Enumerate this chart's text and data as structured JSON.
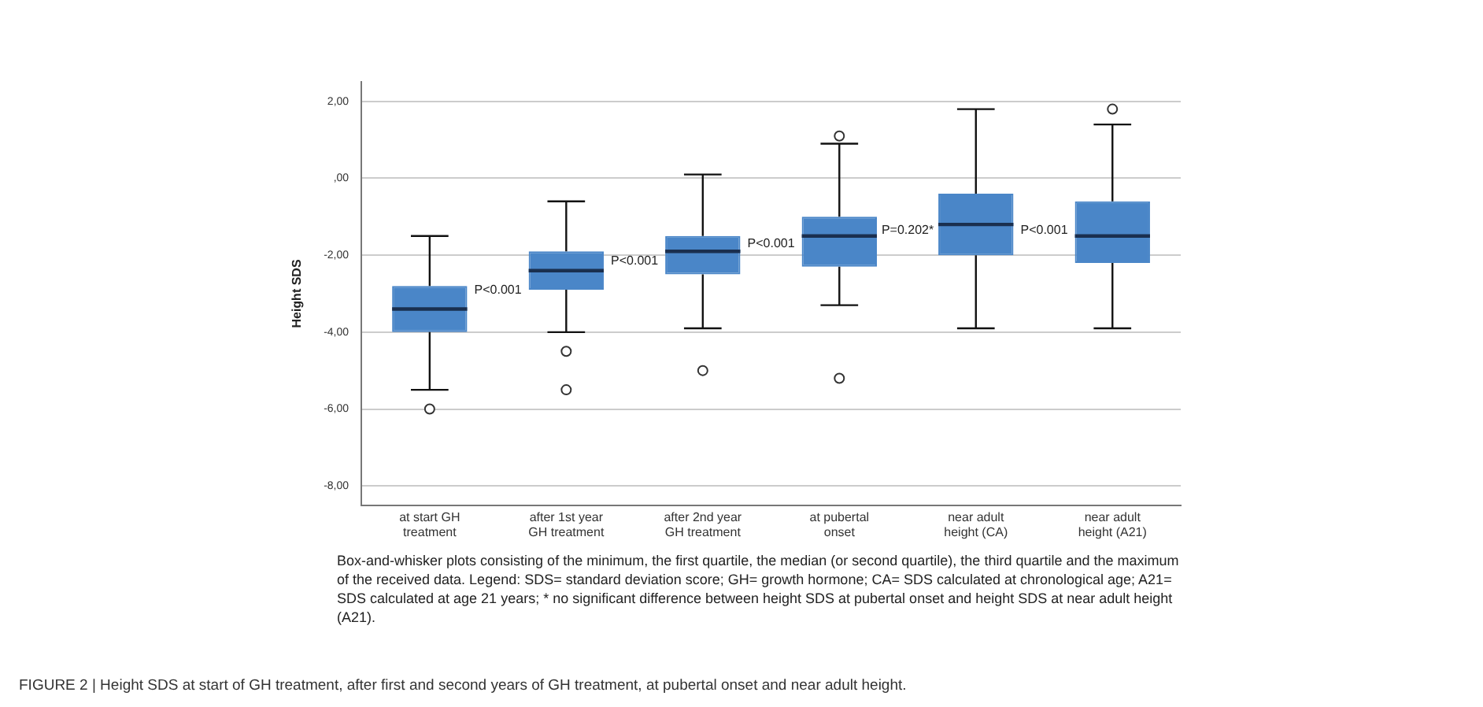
{
  "chart_data": {
    "type": "box",
    "ylabel": "Height SDS",
    "categories": [
      "at start GH treatment",
      "after 1st year GH treatment",
      "after 2nd year GH treatment",
      "at pubertal onset",
      "near adult height (CA)",
      "near adult height (A21)"
    ],
    "boxes": [
      {
        "low": -5.5,
        "q1": -4.0,
        "median": -3.4,
        "q3": -2.8,
        "high": -1.5,
        "outliers": [
          -6.0
        ]
      },
      {
        "low": -4.0,
        "q1": -2.9,
        "median": -2.4,
        "q3": -1.9,
        "high": -0.6,
        "outliers": [
          -4.5,
          -5.5
        ]
      },
      {
        "low": -3.9,
        "q1": -2.5,
        "median": -1.9,
        "q3": -1.5,
        "high": 0.1,
        "outliers": [
          -5.0
        ]
      },
      {
        "low": -3.3,
        "q1": -2.3,
        "median": -1.5,
        "q3": -1.0,
        "high": 0.9,
        "outliers": [
          1.1,
          -5.2
        ]
      },
      {
        "low": -3.9,
        "q1": -2.0,
        "median": -1.2,
        "q3": -0.4,
        "high": 1.8
      },
      {
        "low": -3.9,
        "q1": -2.2,
        "median": -1.5,
        "q3": -0.6,
        "high": 1.4,
        "outliers": [
          1.8
        ]
      }
    ],
    "color": "#4a86c8",
    "marker": "circle",
    "grid": "y",
    "ylim": [
      -8.5,
      2.5
    ],
    "yticks": [
      {
        "value": -8,
        "label": "-8,00"
      },
      {
        "value": -6,
        "label": "-6,00"
      },
      {
        "value": -4,
        "label": "-4,00"
      },
      {
        "value": -2,
        "label": "-2,00"
      },
      {
        "value": 0,
        "label": ",00"
      },
      {
        "value": 2,
        "label": "2,00"
      }
    ],
    "annotations": [
      "P<0.001",
      "P<0.001",
      "P<0.001",
      "P=0.202*",
      "P<0.001",
      "Box-and-whisker plots consisting of the minimum, the first quartile, the median (or second quartile), the third quartile and the maximum of the received data. Legend: SDS= standard deviation score; GH= growth hormone; CA= SDS calculated at chronological age; A21= SDS calculated at age 21 years; * no significant difference between height SDS at pubertal onset and height SDS at near adult height (A21).",
      "FIGURE 2 | Height SDS at start of GH treatment, after first and second years of GH treatment, at pubertal onset and near adult height."
    ]
  }
}
